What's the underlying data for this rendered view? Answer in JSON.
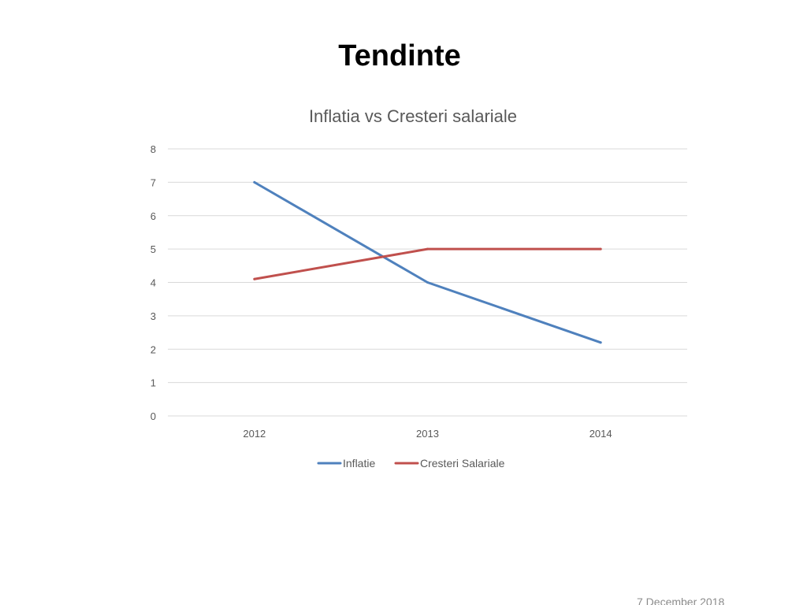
{
  "slide": {
    "title": "Tendinte",
    "footer_date": "7 December 2018"
  },
  "chart_data": {
    "type": "line",
    "title": "Inflatia vs Cresteri salariale",
    "xlabel": "",
    "ylabel": "",
    "categories": [
      "2012",
      "2013",
      "2014"
    ],
    "ylim": [
      0,
      8
    ],
    "yticks": [
      0,
      1,
      2,
      3,
      4,
      5,
      6,
      7,
      8
    ],
    "grid": true,
    "legend_position": "bottom",
    "series": [
      {
        "name": "Inflatie",
        "values": [
          7,
          4,
          2.2
        ],
        "color": "#4f81bd"
      },
      {
        "name": "Cresteri Salariale",
        "values": [
          4.1,
          5,
          5
        ],
        "color": "#c0504d"
      }
    ]
  }
}
